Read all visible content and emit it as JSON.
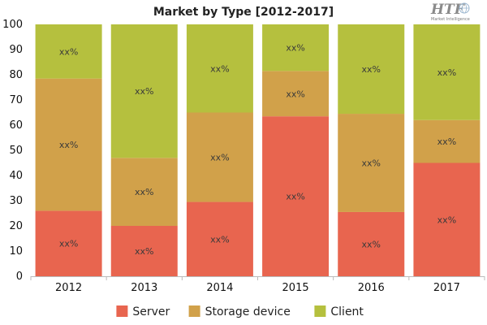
{
  "logo": {
    "mark": "HTF",
    "tagline": "Market Intelligence"
  },
  "chart_data": {
    "type": "bar",
    "stacked": true,
    "title": "Market by Type [2012-2017]",
    "xlabel": "",
    "ylabel": "",
    "categories": [
      "2012",
      "2013",
      "2014",
      "2015",
      "2016",
      "2017"
    ],
    "ylim": [
      0,
      100
    ],
    "yticks": [
      0,
      10,
      20,
      30,
      40,
      50,
      60,
      70,
      80,
      90,
      100
    ],
    "grid": false,
    "legend_position": "bottom",
    "series": [
      {
        "name": "Server",
        "color": "#e8654f",
        "values": [
          26,
          20,
          29.5,
          63.5,
          25.5,
          45
        ],
        "labels": [
          "xx%",
          "xx%",
          "xx%",
          "xx%",
          "xx%",
          "xx%"
        ]
      },
      {
        "name": "Storage device",
        "color": "#d1a14a",
        "values": [
          52.5,
          27,
          35.5,
          18,
          39,
          17
        ],
        "labels": [
          "xx%",
          "xx%",
          "xx%",
          "xx%",
          "xx%",
          "xx%"
        ]
      },
      {
        "name": "Client",
        "color": "#b5c03e",
        "values": [
          21.5,
          53,
          35,
          18.5,
          35.5,
          38
        ],
        "labels": [
          "xx%",
          "xx%",
          "xx%",
          "xx%",
          "xx%",
          "xx%"
        ]
      }
    ]
  }
}
